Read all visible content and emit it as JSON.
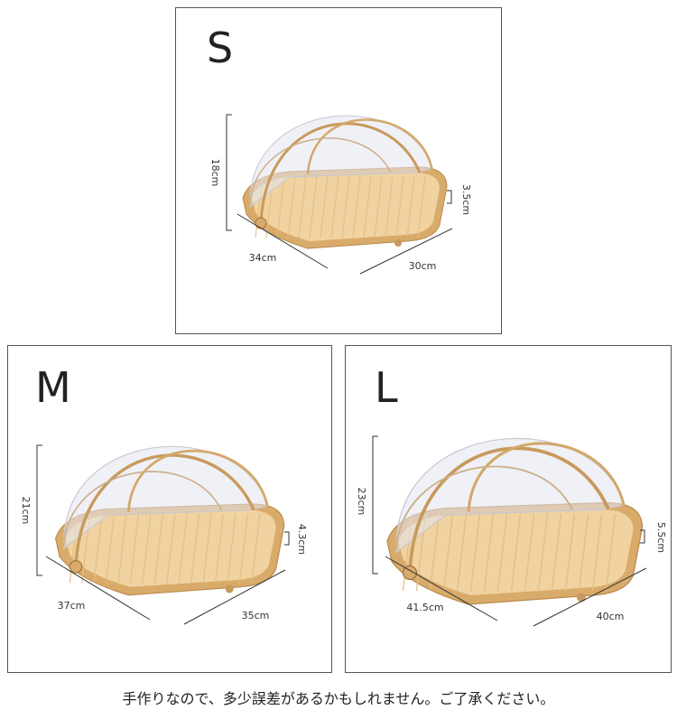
{
  "panels": [
    {
      "size": "S",
      "height": "18cm",
      "rim": "3.5cm",
      "depth": "34cm",
      "width": "30cm"
    },
    {
      "size": "M",
      "height": "21cm",
      "rim": "4.3cm",
      "depth": "37cm",
      "width": "35cm"
    },
    {
      "size": "L",
      "height": "23cm",
      "rim": "5.5cm",
      "depth": "41.5cm",
      "width": "40cm"
    }
  ],
  "note": "手作りなので、多少誤差があるかもしれません。ご了承ください。"
}
